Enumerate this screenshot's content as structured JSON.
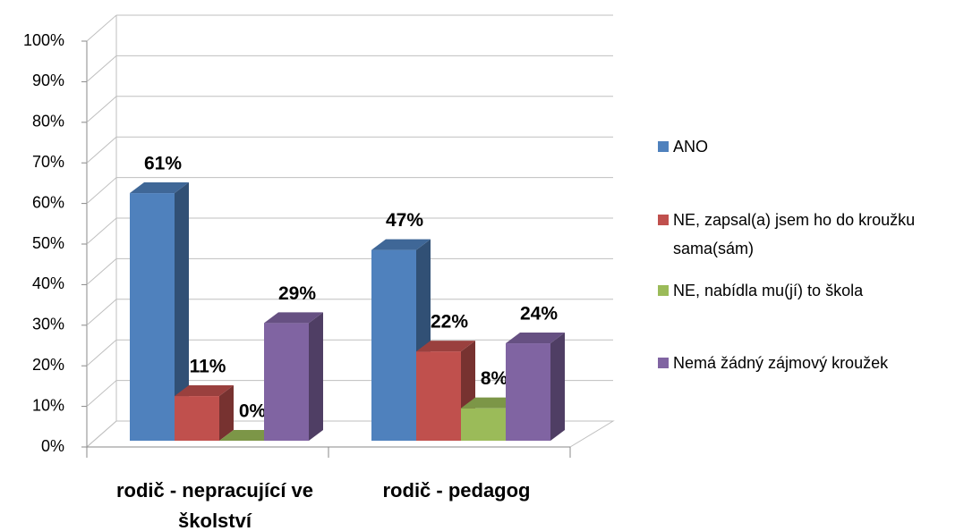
{
  "chart_data": {
    "type": "bar3d",
    "categories": [
      "rodič - nepracující ve školství",
      "rodič - pedagog"
    ],
    "series": [
      {
        "name": "ANO",
        "color": "#4f81bd",
        "values": [
          61,
          47
        ],
        "value_labels": [
          "61%",
          "47%"
        ]
      },
      {
        "name": "NE, zapsal(a) jsem ho do kroužku sama(sám)",
        "color": "#c0504d",
        "values": [
          11,
          22
        ],
        "value_labels": [
          "11%",
          "22%"
        ]
      },
      {
        "name": "NE, nabídla mu(jí) to škola",
        "color": "#9bbb59",
        "values": [
          0,
          8
        ],
        "value_labels": [
          "0%",
          "8%"
        ]
      },
      {
        "name": "Nemá žádný zájmový kroužek",
        "color": "#8064a2",
        "values": [
          29,
          24
        ],
        "value_labels": [
          "29%",
          "24%"
        ]
      }
    ],
    "ylim": [
      0,
      100
    ],
    "yticks": [
      {
        "value": 0,
        "label": "0%"
      },
      {
        "value": 10,
        "label": "10%"
      },
      {
        "value": 20,
        "label": "20%"
      },
      {
        "value": 30,
        "label": "30%"
      },
      {
        "value": 40,
        "label": "40%"
      },
      {
        "value": 50,
        "label": "50%"
      },
      {
        "value": 60,
        "label": "60%"
      },
      {
        "value": 70,
        "label": "70%"
      },
      {
        "value": 80,
        "label": "80%"
      },
      {
        "value": 90,
        "label": "90%"
      },
      {
        "value": 100,
        "label": "100%"
      }
    ],
    "grid": true,
    "legend": "right"
  }
}
